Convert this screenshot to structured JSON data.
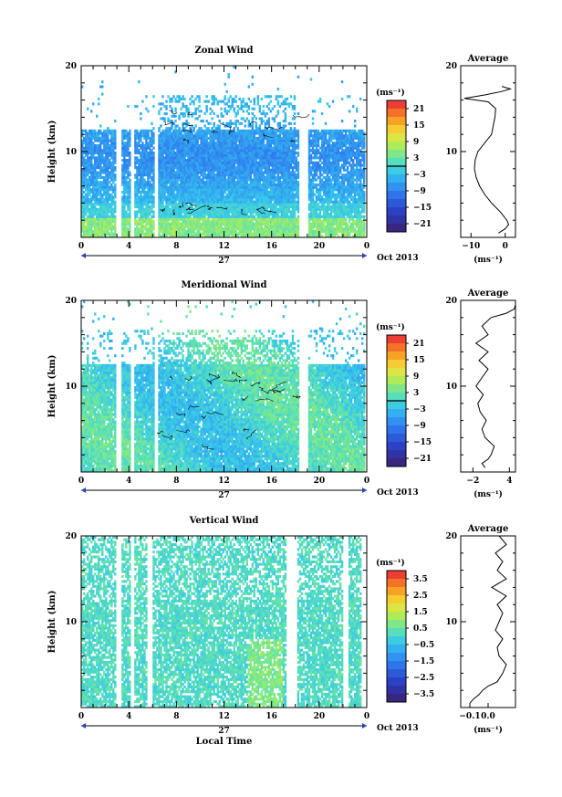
{
  "chart_data": [
    {
      "type": "heatmap",
      "title": "Zonal Wind",
      "ylabel": "Height (km)",
      "ylim": [
        0,
        20
      ],
      "y_ticks": [
        10,
        20
      ],
      "x_ticks": [
        "0",
        "4",
        "8",
        "12",
        "16",
        "20",
        "0"
      ],
      "xlim": [
        0,
        24
      ],
      "date_day": "27",
      "date_label": "Oct 2013",
      "colorbar": {
        "unit": "(ms⁻¹)",
        "ticks": [
          21,
          15,
          9,
          3,
          -3,
          -9,
          -15,
          -21
        ],
        "tick_labels": [
          "21",
          "15",
          "9",
          "3",
          "−3",
          "−9",
          "−15",
          "−21"
        ],
        "range": [
          -24,
          24
        ]
      },
      "data_gaps_hours": [
        [
          3.0,
          3.4
        ],
        [
          4.2,
          4.5
        ],
        [
          6.2,
          6.5
        ],
        [
          18.3,
          19.0
        ],
        [
          23.8,
          24.0
        ]
      ],
      "average_profile": {
        "title": "Average",
        "xlabel": "(ms⁻¹)",
        "xlim": [
          -13,
          3
        ],
        "x_ticks": [
          -10,
          0
        ],
        "x_tick_labels": [
          "−10",
          "0"
        ],
        "y_ticks": [
          10,
          20
        ],
        "profile": [
          [
            0.5,
            -2
          ],
          [
            1,
            0
          ],
          [
            1.5,
            1
          ],
          [
            2,
            0.5
          ],
          [
            3,
            -1.5
          ],
          [
            4,
            -4
          ],
          [
            5,
            -6
          ],
          [
            6,
            -7.5
          ],
          [
            7,
            -8.5
          ],
          [
            8,
            -9
          ],
          [
            9,
            -8.8
          ],
          [
            10,
            -8
          ],
          [
            11,
            -6
          ],
          [
            12,
            -4
          ],
          [
            13,
            -3.5
          ],
          [
            14,
            -3
          ],
          [
            15,
            -2.8
          ],
          [
            15.8,
            -5
          ],
          [
            16.2,
            -12
          ],
          [
            16.6,
            -6
          ],
          [
            17,
            -1
          ],
          [
            17.3,
            1.5
          ],
          [
            17.6,
            -1
          ]
        ]
      }
    },
    {
      "type": "heatmap",
      "title": "Meridional Wind",
      "ylabel": "Height (km)",
      "ylim": [
        0,
        20
      ],
      "y_ticks": [
        10,
        20
      ],
      "x_ticks": [
        "0",
        "4",
        "8",
        "12",
        "16",
        "20",
        "0"
      ],
      "xlim": [
        0,
        24
      ],
      "date_day": "27",
      "date_label": "Oct 2013",
      "colorbar": {
        "unit": "(ms⁻¹)",
        "ticks": [
          21,
          15,
          9,
          3,
          -3,
          -9,
          -15,
          -21
        ],
        "tick_labels": [
          "21",
          "15",
          "9",
          "3",
          "−3",
          "−9",
          "−15",
          "−21"
        ],
        "range": [
          -24,
          24
        ]
      },
      "data_gaps_hours": [
        [
          3.0,
          3.4
        ],
        [
          4.2,
          4.5
        ],
        [
          6.2,
          6.5
        ],
        [
          18.3,
          19.0
        ],
        [
          23.8,
          24.0
        ]
      ],
      "average_profile": {
        "title": "Average",
        "xlabel": "(ms⁻¹)",
        "xlim": [
          -4,
          5
        ],
        "x_ticks": [
          -2,
          4
        ],
        "x_tick_labels": [
          "−2",
          "4"
        ],
        "y_ticks": [
          10,
          20
        ],
        "profile": [
          [
            0.5,
            0
          ],
          [
            1,
            -0.5
          ],
          [
            1.5,
            0.5
          ],
          [
            2,
            1
          ],
          [
            3,
            1.5
          ],
          [
            4,
            0
          ],
          [
            5,
            -0.5
          ],
          [
            6,
            0.2
          ],
          [
            7,
            -0.8
          ],
          [
            8,
            -1.2
          ],
          [
            9,
            -0.3
          ],
          [
            10,
            -1.5
          ],
          [
            11,
            -0.5
          ],
          [
            12,
            0.5
          ],
          [
            13,
            -1
          ],
          [
            14,
            0.5
          ],
          [
            15,
            -1.5
          ],
          [
            16,
            0.5
          ],
          [
            17,
            -0.5
          ],
          [
            18,
            1
          ],
          [
            18.5,
            3.5
          ],
          [
            19,
            4.8
          ],
          [
            19.5,
            5
          ],
          [
            20,
            5
          ]
        ]
      }
    },
    {
      "type": "heatmap",
      "title": "Vertical Wind",
      "ylabel": "Height (km)",
      "xlabel": "Local Time",
      "ylim": [
        0,
        20
      ],
      "y_ticks": [
        10,
        20
      ],
      "x_ticks": [
        "0",
        "4",
        "8",
        "12",
        "16",
        "20",
        "0"
      ],
      "xlim": [
        0,
        24
      ],
      "date_day": "27",
      "date_label": "Oct 2013",
      "colorbar": {
        "unit": "(ms⁻¹)",
        "ticks": [
          3.5,
          2.5,
          1.5,
          0.5,
          -0.5,
          -1.5,
          -2.5,
          -3.5
        ],
        "tick_labels": [
          "3.5",
          "2.5",
          "1.5",
          "0.5",
          "−0.5",
          "−1.5",
          "−2.5",
          "−3.5"
        ],
        "range": [
          -4,
          4
        ]
      },
      "data_gaps_hours": [
        [
          3.0,
          3.4
        ],
        [
          4.2,
          4.5
        ],
        [
          5.5,
          6.0
        ],
        [
          17.3,
          18.2
        ],
        [
          22.0,
          22.4
        ],
        [
          23.5,
          24.0
        ]
      ],
      "average_profile": {
        "title": "Average",
        "xlabel": "(ms⁻¹)",
        "xlim": [
          -0.15,
          0.15
        ],
        "x_ticks": [
          -0.1,
          0.0
        ],
        "x_tick_labels": [
          "−0.1",
          "0.0"
        ],
        "y_ticks": [
          10,
          20
        ],
        "profile": [
          [
            0.5,
            -0.1
          ],
          [
            1,
            -0.08
          ],
          [
            1.5,
            -0.05
          ],
          [
            2,
            -0.03
          ],
          [
            2.5,
            0.0
          ],
          [
            3,
            0.05
          ],
          [
            4,
            0.08
          ],
          [
            5,
            0.1
          ],
          [
            6,
            0.06
          ],
          [
            7,
            0.05
          ],
          [
            8,
            0.08
          ],
          [
            9,
            0.04
          ],
          [
            10,
            0.06
          ],
          [
            11,
            0.08
          ],
          [
            12,
            0.05
          ],
          [
            13,
            0.1
          ],
          [
            14,
            0.02
          ],
          [
            15,
            0.1
          ],
          [
            16,
            0.05
          ],
          [
            17,
            0.08
          ],
          [
            18,
            0.04
          ],
          [
            19,
            0.1
          ],
          [
            20,
            0.06
          ]
        ]
      }
    }
  ]
}
